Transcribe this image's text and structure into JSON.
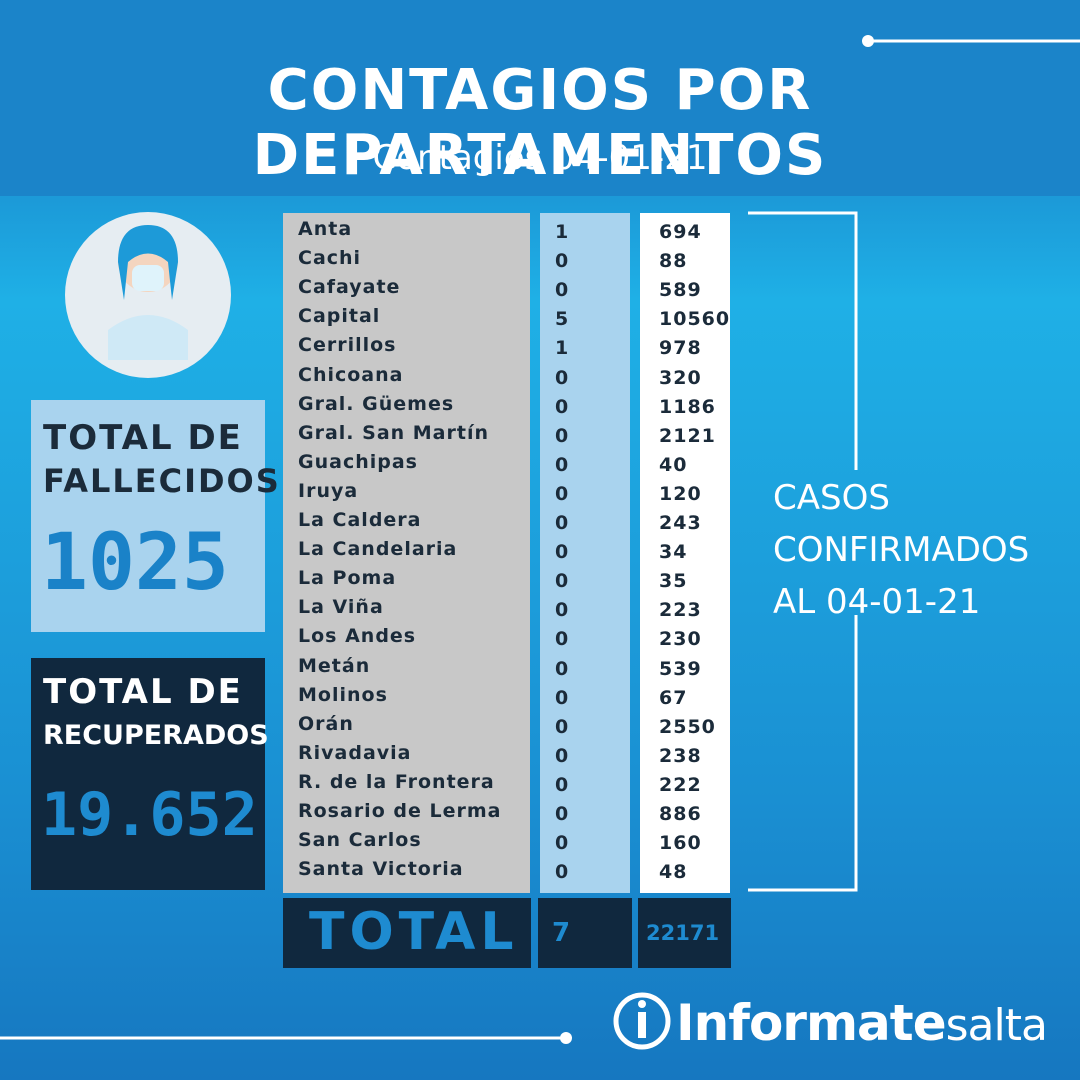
{
  "header": {
    "title": "CONTAGIOS POR DEPARTAMENTOS",
    "subtitle": "Contagios 04-01-21"
  },
  "fallecidos": {
    "label_1": "TOTAL DE",
    "label_2": "FALLECIDOS",
    "value": 1025
  },
  "recuperados": {
    "label_1": "TOTAL DE",
    "label_2": "RECUPERADOS",
    "value": "19.652"
  },
  "table": {
    "rows": [
      [
        "Anta",
        1,
        694
      ],
      [
        "Cachi",
        0,
        88
      ],
      [
        "Cafayate",
        0,
        589
      ],
      [
        "Capital",
        5,
        10560
      ],
      [
        "Cerrillos",
        1,
        978
      ],
      [
        "Chicoana",
        0,
        320
      ],
      [
        "Gral. Güemes",
        0,
        1186
      ],
      [
        "Gral. San Martín",
        0,
        2121
      ],
      [
        "Guachipas",
        0,
        40
      ],
      [
        "Iruya",
        0,
        120
      ],
      [
        "La Caldera",
        0,
        243
      ],
      [
        "La Candelaria",
        0,
        34
      ],
      [
        "La Poma",
        0,
        35
      ],
      [
        "La Viña",
        0,
        223
      ],
      [
        "Los Andes",
        0,
        230
      ],
      [
        "Metán",
        0,
        539
      ],
      [
        "Molinos",
        0,
        67
      ],
      [
        "Orán",
        0,
        2550
      ],
      [
        "Rivadavia",
        0,
        238
      ],
      [
        "R. de la Frontera",
        0,
        222
      ],
      [
        "Rosario de Lerma",
        0,
        886
      ],
      [
        "San Carlos",
        0,
        160
      ],
      [
        "Santa Victoria",
        0,
        48
      ]
    ],
    "total_label": "TOTAL",
    "total_new": 7,
    "total_cases": 22171
  },
  "side_note": [
    "CASOS",
    "CONFIRMADOS",
    "AL 04-01-21"
  ],
  "brand": {
    "name": "Informate",
    "suffix": "salta"
  }
}
